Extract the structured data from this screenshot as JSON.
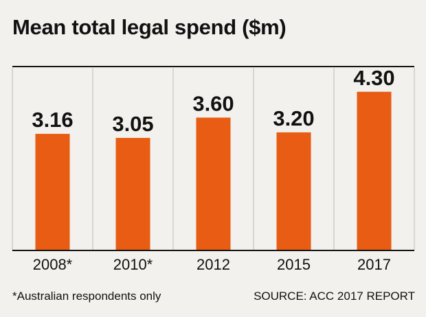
{
  "chart_data": {
    "type": "bar",
    "title": "Mean total legal spend ($m)",
    "categories": [
      "2008*",
      "2010*",
      "2012",
      "2015",
      "2017"
    ],
    "values": [
      3.16,
      3.05,
      3.6,
      3.2,
      4.3
    ],
    "value_labels": [
      "3.16",
      "3.05",
      "3.60",
      "3.20",
      "4.30"
    ],
    "xlabel": "",
    "ylabel": "",
    "ylim": [
      0,
      4.5
    ],
    "grid": "vertical separators",
    "legend": "none"
  },
  "colors": {
    "bar": "#e85c14",
    "axis": "#111111",
    "separator": "#bcbcbc",
    "background": "#f2f1ed"
  },
  "footnote": "*Australian respondents only",
  "source": "SOURCE: ACC 2017 REPORT"
}
